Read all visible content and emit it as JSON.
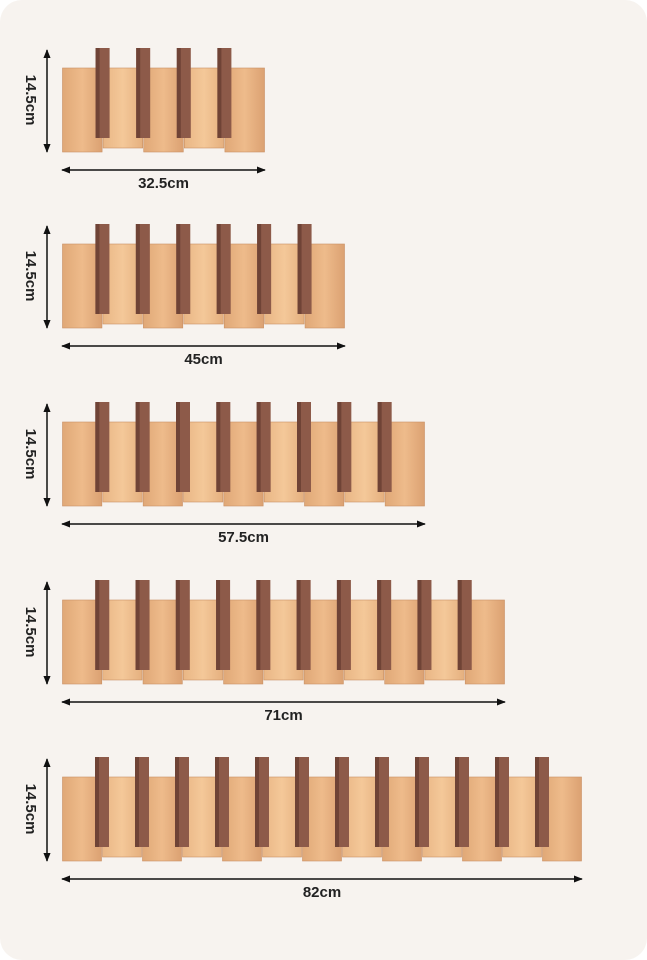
{
  "items": [
    {
      "height": "14.5cm",
      "width": "32.5cm"
    },
    {
      "height": "14.5cm",
      "width": "45cm"
    },
    {
      "height": "14.5cm",
      "width": "57.5cm"
    },
    {
      "height": "14.5cm",
      "width": "71cm"
    },
    {
      "height": "14.5cm",
      "width": "82cm"
    }
  ]
}
